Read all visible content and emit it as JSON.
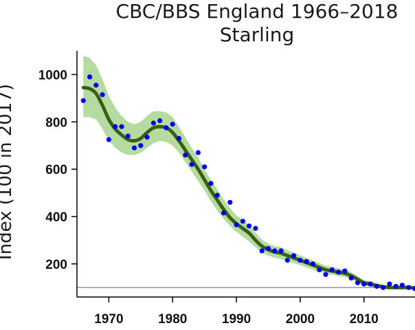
{
  "chart_data": {
    "type": "line",
    "title": "CBC/BBS England 1966–2018",
    "subtitle": "Starling",
    "ylabel": "Index (100 in 2017)",
    "xlabel": "",
    "xlim": [
      1965,
      2018
    ],
    "ylim": [
      60,
      1100
    ],
    "x_ticks": [
      1970,
      1980,
      1990,
      2000,
      2010
    ],
    "y_ticks": [
      200,
      400,
      600,
      800,
      1000
    ],
    "reference_line": 100,
    "grid": false,
    "colors": {
      "points": "#0000ee",
      "trend": "#3a5f12",
      "band": "#b6dba0",
      "reference": "#999999"
    },
    "series": [
      {
        "kind": "points",
        "x": [
          1966,
          1967,
          1968,
          1969,
          1970,
          1971,
          1972,
          1973,
          1974,
          1975,
          1976,
          1977,
          1978,
          1979,
          1980,
          1981,
          1982,
          1983,
          1984,
          1985,
          1986,
          1987,
          1988,
          1989,
          1990,
          1991,
          1992,
          1993,
          1994,
          1995,
          1996,
          1997,
          1998,
          1999,
          2000,
          2001,
          2002,
          2003,
          2004,
          2005,
          2006,
          2007,
          2008,
          2009,
          2010,
          2011,
          2012,
          2013,
          2014,
          2015,
          2016,
          2017,
          2018
        ],
        "y": [
          890,
          990,
          955,
          915,
          725,
          780,
          780,
          740,
          690,
          700,
          735,
          795,
          805,
          775,
          790,
          730,
          660,
          620,
          670,
          610,
          540,
          490,
          415,
          460,
          365,
          380,
          360,
          350,
          255,
          265,
          255,
          255,
          215,
          235,
          215,
          210,
          200,
          175,
          155,
          175,
          165,
          170,
          140,
          120,
          115,
          115,
          105,
          100,
          115,
          105,
          110,
          100,
          95
        ]
      },
      {
        "kind": "trend",
        "x": [
          1966,
          1967,
          1968,
          1969,
          1970,
          1971,
          1972,
          1973,
          1974,
          1975,
          1976,
          1977,
          1978,
          1979,
          1980,
          1981,
          1982,
          1983,
          1984,
          1985,
          1986,
          1987,
          1988,
          1989,
          1990,
          1991,
          1992,
          1993,
          1994,
          1995,
          1996,
          1997,
          1998,
          1999,
          2000,
          2001,
          2002,
          2003,
          2004,
          2005,
          2006,
          2007,
          2008,
          2009,
          2010,
          2011,
          2012,
          2013,
          2014,
          2015,
          2016,
          2017,
          2018
        ],
        "y": [
          945,
          940,
          920,
          870,
          810,
          770,
          745,
          725,
          720,
          730,
          755,
          775,
          780,
          775,
          755,
          720,
          680,
          640,
          600,
          555,
          510,
          470,
          430,
          395,
          370,
          350,
          330,
          300,
          275,
          260,
          250,
          245,
          235,
          225,
          215,
          205,
          195,
          185,
          175,
          170,
          165,
          160,
          150,
          135,
          120,
          115,
          108,
          103,
          100,
          100,
          100,
          100,
          98
        ],
        "lower": [
          820,
          820,
          810,
          770,
          720,
          690,
          670,
          660,
          660,
          670,
          690,
          710,
          720,
          715,
          700,
          670,
          630,
          590,
          550,
          510,
          465,
          425,
          390,
          360,
          335,
          315,
          295,
          270,
          248,
          235,
          226,
          220,
          212,
          203,
          195,
          185,
          176,
          167,
          158,
          154,
          149,
          144,
          135,
          122,
          108,
          104,
          98,
          94,
          92,
          92,
          92,
          92,
          88
        ],
        "upper": [
          1080,
          1070,
          1040,
          980,
          910,
          860,
          825,
          800,
          790,
          800,
          825,
          845,
          845,
          840,
          820,
          780,
          735,
          690,
          650,
          600,
          555,
          515,
          472,
          435,
          405,
          385,
          365,
          332,
          302,
          285,
          275,
          270,
          258,
          247,
          236,
          225,
          214,
          203,
          193,
          187,
          181,
          176,
          165,
          148,
          132,
          127,
          118,
          112,
          108,
          108,
          108,
          108,
          108
        ]
      }
    ]
  }
}
